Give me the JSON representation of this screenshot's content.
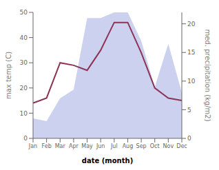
{
  "chart_data": {
    "type": "line",
    "categories": [
      "Jan",
      "Feb",
      "Mar",
      "Apr",
      "May",
      "Jun",
      "Jul",
      "Aug",
      "Sep",
      "Oct",
      "Nov",
      "Dec"
    ],
    "xlabel": "date (month)",
    "ylabel": "max temp (C)",
    "y2label": "med. precipitation (kg/m2)",
    "ylim": [
      0,
      50
    ],
    "yticks": [
      0,
      10,
      20,
      30,
      40,
      50
    ],
    "y2lim": [
      0,
      22
    ],
    "y2ticks": [
      0,
      5,
      10,
      15,
      20
    ],
    "grid": false,
    "series": [
      {
        "type": "area",
        "axis": "y2",
        "color": "#b0b8e8",
        "values": [
          3.5,
          3.0,
          7.0,
          8.5,
          21,
          21,
          22,
          22,
          17,
          9,
          16.5,
          8
        ]
      },
      {
        "type": "line",
        "color": "#8b3355",
        "values": [
          14,
          16,
          30,
          29,
          27,
          35,
          46,
          46,
          34,
          20,
          16,
          15
        ]
      }
    ]
  }
}
